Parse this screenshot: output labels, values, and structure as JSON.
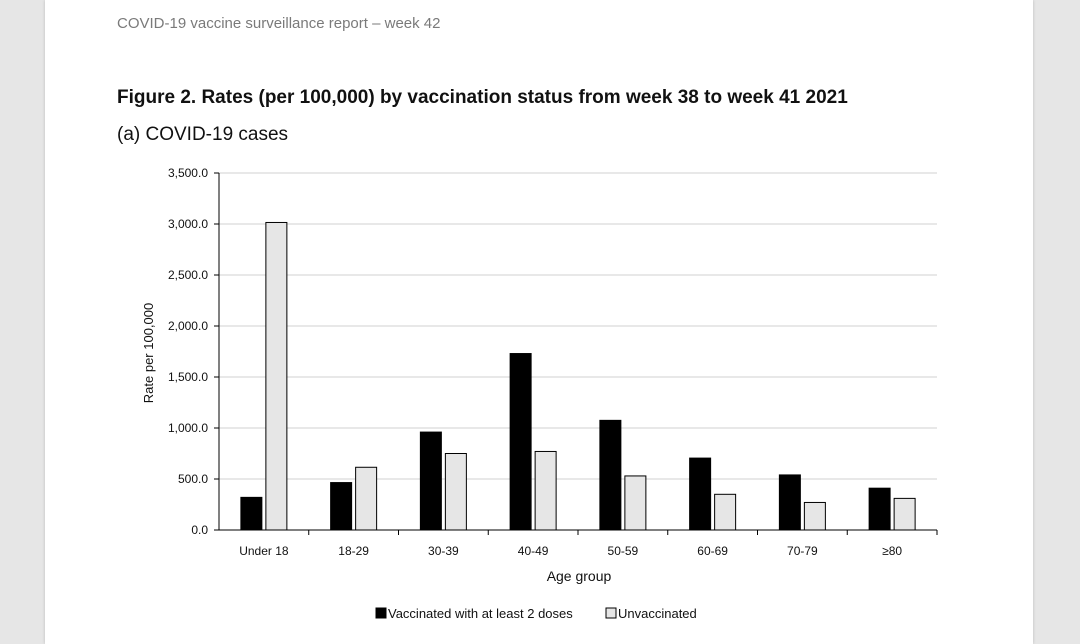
{
  "header": {
    "running_title": "COVID-19 vaccine surveillance report – week 42"
  },
  "figure": {
    "title": "Figure 2. Rates (per 100,000) by vaccination status from week 38 to week 41 2021",
    "subtitle": "(a) COVID-19 cases"
  },
  "chart_data": {
    "type": "bar",
    "categories": [
      "Under 18",
      "18-29",
      "30-39",
      "40-49",
      "50-59",
      "60-69",
      "70-79",
      "≥80"
    ],
    "series": [
      {
        "name": "Vaccinated with at least 2 doses",
        "color": "#000000",
        "values": [
          320,
          465,
          960,
          1730,
          1075,
          705,
          540,
          410
        ]
      },
      {
        "name": "Unvaccinated",
        "color": "#e6e6e6",
        "values": [
          3015,
          615,
          750,
          770,
          530,
          350,
          270,
          310
        ]
      }
    ],
    "xlabel": "Age group",
    "ylabel": "Rate per 100,000",
    "ylim": [
      0,
      3500
    ],
    "yticks": [
      0,
      500,
      1000,
      1500,
      2000,
      2500,
      3000,
      3500
    ],
    "ytick_labels": [
      "0.0",
      "500.0",
      "1,000.0",
      "1,500.0",
      "2,000.0",
      "2,500.0",
      "3,000.0",
      "3,500.0"
    ],
    "grid": true,
    "legend_position": "bottom"
  }
}
